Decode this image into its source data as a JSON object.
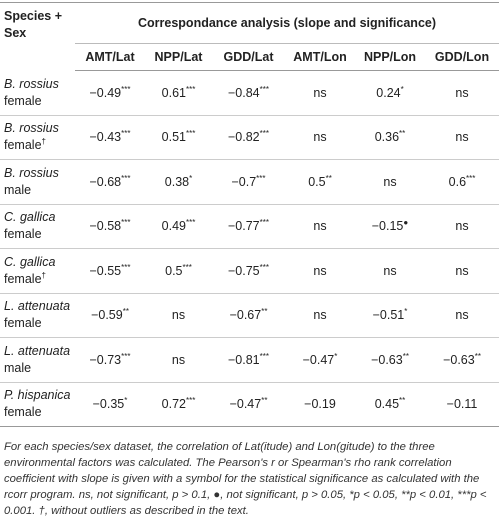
{
  "table": {
    "header": {
      "species": "Species + Sex",
      "group": "Correspondance analysis (slope and significance)",
      "columns": [
        "AMT/Lat",
        "NPP/Lat",
        "GDD/Lat",
        "AMT/Lon",
        "NPP/Lon",
        "GDD/Lon"
      ]
    },
    "rows": [
      {
        "name": "B. rossius",
        "sex": "female",
        "cells": [
          {
            "value": "−0.49",
            "sig": "***"
          },
          {
            "value": "0.61",
            "sig": "***"
          },
          {
            "value": "−0.84",
            "sig": "***"
          },
          "ns",
          {
            "value": "0.24",
            "sig": "*"
          },
          "ns"
        ]
      },
      {
        "name": "B. rossius",
        "sex": "female",
        "mark": "†",
        "cells": [
          {
            "value": "−0.43",
            "sig": "***"
          },
          {
            "value": "0.51",
            "sig": "***"
          },
          {
            "value": "−0.82",
            "sig": "***"
          },
          "ns",
          {
            "value": "0.36",
            "sig": "**"
          },
          "ns"
        ]
      },
      {
        "name": "B. rossius",
        "sex": "male",
        "cells": [
          {
            "value": "−0.68",
            "sig": "***"
          },
          {
            "value": "0.38",
            "sig": "*"
          },
          {
            "value": "−0.7",
            "sig": "***"
          },
          {
            "value": "0.5",
            "sig": "**"
          },
          "ns",
          {
            "value": "0.6",
            "sig": "***"
          }
        ]
      },
      {
        "name": "C. gallica",
        "sex": "female",
        "cells": [
          {
            "value": "−0.58",
            "sig": "***"
          },
          {
            "value": "0.49",
            "sig": "***"
          },
          {
            "value": "−0.77",
            "sig": "***"
          },
          "ns",
          {
            "value": "−0.15",
            "sig": "●"
          },
          "ns"
        ]
      },
      {
        "name": "C. gallica",
        "sex": "female",
        "mark": "†",
        "cells": [
          {
            "value": "−0.55",
            "sig": "***"
          },
          {
            "value": "0.5",
            "sig": "***"
          },
          {
            "value": "−0.75",
            "sig": "***"
          },
          "ns",
          "ns",
          "ns"
        ]
      },
      {
        "name": "L. attenuata",
        "sex": "female",
        "cells": [
          {
            "value": "−0.59",
            "sig": "**"
          },
          "ns",
          {
            "value": "−0.67",
            "sig": "**"
          },
          "ns",
          {
            "value": "−0.51",
            "sig": "*"
          },
          "ns"
        ]
      },
      {
        "name": "L. attenuata",
        "sex": "male",
        "cells": [
          {
            "value": "−0.73",
            "sig": "***"
          },
          "ns",
          {
            "value": "−0.81",
            "sig": "***"
          },
          {
            "value": "−0.47",
            "sig": "*"
          },
          {
            "value": "−0.63",
            "sig": "**"
          },
          {
            "value": "−0.63",
            "sig": "**"
          }
        ]
      },
      {
        "name": "P. hispanica",
        "sex": "female",
        "cells": [
          {
            "value": "−0.35",
            "sig": "*"
          },
          {
            "value": "0.72",
            "sig": "***"
          },
          {
            "value": "−0.47",
            "sig": "**"
          },
          "−0.19",
          {
            "value": "0.45",
            "sig": "**"
          },
          "−0.11"
        ]
      }
    ]
  },
  "footnote": "For each species/sex dataset, the correlation of Lat(itude) and Lon(gitude) to the three environmental factors was calculated. The Pearson's r or Spearman's rho rank correlation coefficient with slope is given with a symbol for the statistical significance as calculated with the rcorr program. ns, not significant, p > 0.1, ●, not significant, p > 0.05, *p < 0.05, **p < 0.01, ***p < 0.001. †, without outliers as described in the text."
}
